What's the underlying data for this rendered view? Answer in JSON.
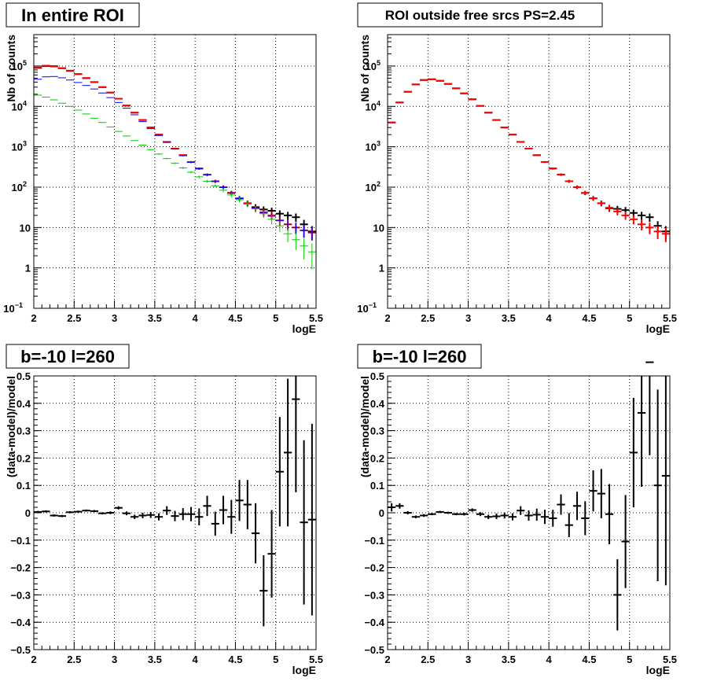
{
  "chart_data": [
    {
      "type": "scatter",
      "title": "In entire ROI",
      "xlabel": "logE",
      "ylabel": "Nb of counts",
      "xlim": [
        2,
        5.5
      ],
      "ylim": [
        0.1,
        600000
      ],
      "yscale": "log",
      "grid": true,
      "x_ticks": [
        "2",
        "2.5",
        "3",
        "3.5",
        "4",
        "4.5",
        "5",
        "5.5"
      ],
      "y_ticks": [
        {
          "value": 100000,
          "label": "10",
          "exp": "5"
        },
        {
          "value": 10000,
          "label": "10",
          "exp": "4"
        },
        {
          "value": 1000,
          "label": "10",
          "exp": "3"
        },
        {
          "value": 100,
          "label": "10",
          "exp": "2"
        },
        {
          "value": 10,
          "label": "10",
          "exp": ""
        },
        {
          "value": 1,
          "label": "1",
          "exp": ""
        },
        {
          "value": 0.1,
          "label": "10",
          "exp": "−1"
        }
      ],
      "x": [
        2.05,
        2.15,
        2.25,
        2.35,
        2.45,
        2.55,
        2.65,
        2.75,
        2.85,
        2.95,
        3.05,
        3.15,
        3.25,
        3.35,
        3.45,
        3.55,
        3.65,
        3.75,
        3.85,
        3.95,
        4.05,
        4.15,
        4.25,
        4.35,
        4.45,
        4.55,
        4.65,
        4.75,
        4.85,
        4.95,
        5.05,
        5.15,
        5.25,
        5.35,
        5.45
      ],
      "series": [
        {
          "color": "#000000",
          "values": [
            90000,
            100000,
            98000,
            88000,
            76000,
            63000,
            50000,
            40000,
            30000,
            22000,
            15500,
            10500,
            7000,
            4600,
            3000,
            2000,
            1320,
            900,
            620,
            420,
            290,
            205,
            140,
            100,
            72,
            53,
            40,
            32,
            28,
            26,
            22,
            20,
            18,
            12,
            8
          ]
        },
        {
          "color": "#ff0000",
          "values": [
            92000,
            102000,
            100000,
            89000,
            77000,
            63500,
            50500,
            40000,
            30000,
            22000,
            15500,
            10500,
            7000,
            4600,
            3000,
            2000,
            1320,
            900,
            620,
            420,
            290,
            205,
            140,
            100,
            72,
            53,
            40,
            30,
            24,
            20,
            15,
            12,
            10,
            8.5,
            7.5
          ]
        },
        {
          "color": "#0000ff",
          "values": [
            47000,
            54000,
            55000,
            51000,
            45000,
            39000,
            33000,
            27000,
            21500,
            16500,
            12500,
            9000,
            6200,
            4200,
            2800,
            1900,
            1280,
            880,
            600,
            410,
            285,
            200,
            138,
            98,
            71,
            52,
            38,
            30,
            23,
            19,
            15,
            12,
            10,
            8.5,
            7.5
          ]
        },
        {
          "color": "#00cc00",
          "values": [
            19000,
            17000,
            14500,
            12000,
            10000,
            8100,
            6500,
            5100,
            4000,
            3100,
            2400,
            1850,
            1420,
            1100,
            850,
            660,
            510,
            390,
            300,
            235,
            180,
            140,
            108,
            84,
            64,
            49,
            38,
            29,
            22,
            16,
            11,
            7,
            5,
            3.5,
            2.5
          ]
        }
      ]
    },
    {
      "type": "scatter",
      "title": "ROI outside free srcs PS=2.45",
      "xlabel": "logE",
      "ylabel": "Nb of counts",
      "xlim": [
        2,
        5.5
      ],
      "ylim": [
        0.1,
        600000
      ],
      "yscale": "log",
      "grid": true,
      "x_ticks": [
        "2",
        "2.5",
        "3",
        "3.5",
        "4",
        "4.5",
        "5",
        "5.5"
      ],
      "y_ticks": [
        {
          "value": 100000,
          "label": "10",
          "exp": "5"
        },
        {
          "value": 10000,
          "label": "10",
          "exp": "4"
        },
        {
          "value": 1000,
          "label": "10",
          "exp": "3"
        },
        {
          "value": 100,
          "label": "10",
          "exp": "2"
        },
        {
          "value": 10,
          "label": "10",
          "exp": ""
        },
        {
          "value": 1,
          "label": "1",
          "exp": ""
        },
        {
          "value": 0.1,
          "label": "10",
          "exp": "−1"
        }
      ],
      "x": [
        2.05,
        2.15,
        2.25,
        2.35,
        2.45,
        2.55,
        2.65,
        2.75,
        2.85,
        2.95,
        3.05,
        3.15,
        3.25,
        3.35,
        3.45,
        3.55,
        3.65,
        3.75,
        3.85,
        3.95,
        4.05,
        4.15,
        4.25,
        4.35,
        4.45,
        4.55,
        4.65,
        4.75,
        4.85,
        4.95,
        5.05,
        5.15,
        5.25,
        5.35,
        5.45
      ],
      "series": [
        {
          "color": "#000000",
          "values": [
            4000,
            12500,
            23000,
            35000,
            45000,
            47000,
            43000,
            36000,
            28000,
            21000,
            15000,
            10300,
            7000,
            4600,
            3000,
            2000,
            1320,
            900,
            620,
            420,
            290,
            205,
            140,
            100,
            72,
            53,
            40,
            30,
            29,
            27,
            23,
            20,
            18,
            11,
            8
          ]
        },
        {
          "color": "#ff0000",
          "values": [
            4000,
            12500,
            23000,
            35000,
            45000,
            47000,
            43000,
            36000,
            28000,
            21000,
            15000,
            10300,
            7000,
            4600,
            3000,
            2000,
            1320,
            900,
            620,
            420,
            290,
            205,
            140,
            100,
            72,
            53,
            40,
            31,
            25,
            20,
            16,
            12,
            10,
            8,
            7
          ]
        }
      ]
    },
    {
      "type": "scatter",
      "title": "b=-10 l=260",
      "xlabel": "logE",
      "ylabel": "(data-model)/model",
      "xlim": [
        2,
        5.5
      ],
      "ylim": [
        -0.5,
        0.5
      ],
      "grid": true,
      "x_ticks": [
        "2",
        "2.5",
        "3",
        "3.5",
        "4",
        "4.5",
        "5",
        "5.5"
      ],
      "y_ticks": [
        {
          "value": 0.5,
          "label": "0.5"
        },
        {
          "value": 0.4,
          "label": "0.4"
        },
        {
          "value": 0.3,
          "label": "0.3"
        },
        {
          "value": 0.2,
          "label": "0.2"
        },
        {
          "value": 0.1,
          "label": "0.1"
        },
        {
          "value": 0,
          "label": "0"
        },
        {
          "value": -0.1,
          "label": "−0.1"
        },
        {
          "value": -0.2,
          "label": "−0.2"
        },
        {
          "value": -0.3,
          "label": "−0.3"
        },
        {
          "value": -0.4,
          "label": "−0.4"
        },
        {
          "value": -0.5,
          "label": "−0.5"
        }
      ],
      "x": [
        2.05,
        2.15,
        2.25,
        2.35,
        2.45,
        2.55,
        2.65,
        2.75,
        2.85,
        2.95,
        3.05,
        3.15,
        3.25,
        3.35,
        3.45,
        3.55,
        3.65,
        3.75,
        3.85,
        3.95,
        4.05,
        4.15,
        4.25,
        4.35,
        4.45,
        4.55,
        4.65,
        4.75,
        4.85,
        4.95,
        5.05,
        5.15,
        5.25,
        5.35,
        5.45
      ],
      "series": [
        {
          "color": "#000000",
          "values": [
            0.003,
            0.005,
            -0.01,
            -0.012,
            0.002,
            0.004,
            0.008,
            0.006,
            -0.002,
            0.0,
            0.018,
            -0.002,
            -0.015,
            -0.01,
            -0.008,
            -0.015,
            0.008,
            -0.012,
            -0.005,
            -0.005,
            -0.015,
            0.025,
            -0.04,
            0.01,
            -0.015,
            0.045,
            0.03,
            -0.075,
            -0.285,
            -0.15,
            0.15,
            0.22,
            0.415,
            -0.035,
            -0.025
          ],
          "errors": [
            0.004,
            0.004,
            0.004,
            0.004,
            0.004,
            0.004,
            0.004,
            0.004,
            0.004,
            0.005,
            0.006,
            0.007,
            0.008,
            0.01,
            0.011,
            0.013,
            0.016,
            0.019,
            0.022,
            0.026,
            0.031,
            0.037,
            0.044,
            0.052,
            0.062,
            0.075,
            0.09,
            0.11,
            0.13,
            0.16,
            0.2,
            0.27,
            0.34,
            0.3,
            0.35
          ]
        }
      ]
    },
    {
      "type": "scatter",
      "title": "b=-10 l=260",
      "xlabel": "logE",
      "ylabel": "(data-model)/model",
      "xlim": [
        2,
        5.5
      ],
      "ylim": [
        -0.5,
        0.5
      ],
      "grid": true,
      "x_ticks": [
        "2",
        "2.5",
        "3",
        "3.5",
        "4",
        "4.5",
        "5",
        "5.5"
      ],
      "y_ticks": [
        {
          "value": 0.5,
          "label": "0.5"
        },
        {
          "value": 0.4,
          "label": "0.4"
        },
        {
          "value": 0.3,
          "label": "0.3"
        },
        {
          "value": 0.2,
          "label": "0.2"
        },
        {
          "value": 0.1,
          "label": "0.1"
        },
        {
          "value": 0,
          "label": "0"
        },
        {
          "value": -0.1,
          "label": "−0.1"
        },
        {
          "value": -0.2,
          "label": "−0.2"
        },
        {
          "value": -0.3,
          "label": "−0.3"
        },
        {
          "value": -0.4,
          "label": "−0.4"
        },
        {
          "value": -0.5,
          "label": "−0.5"
        }
      ],
      "x": [
        2.05,
        2.15,
        2.25,
        2.35,
        2.45,
        2.55,
        2.65,
        2.75,
        2.85,
        2.95,
        3.05,
        3.15,
        3.25,
        3.35,
        3.45,
        3.55,
        3.65,
        3.75,
        3.85,
        3.95,
        4.05,
        4.15,
        4.25,
        4.35,
        4.45,
        4.55,
        4.65,
        4.75,
        4.85,
        4.95,
        5.05,
        5.15,
        5.25,
        5.35,
        5.45
      ],
      "series": [
        {
          "color": "#000000",
          "values": [
            0.02,
            0.025,
            0.0,
            -0.015,
            -0.01,
            -0.005,
            0.003,
            0.0,
            -0.005,
            -0.005,
            0.01,
            -0.005,
            -0.015,
            -0.013,
            -0.01,
            -0.015,
            0.008,
            -0.01,
            -0.007,
            -0.015,
            -0.02,
            0.03,
            -0.045,
            0.025,
            -0.02,
            0.08,
            0.07,
            -0.005,
            -0.3,
            -0.105,
            0.22,
            0.365,
            0.55,
            0.1,
            0.135
          ],
          "errors": [
            0.015,
            0.01,
            0.006,
            0.005,
            0.005,
            0.004,
            0.004,
            0.004,
            0.004,
            0.005,
            0.006,
            0.007,
            0.008,
            0.01,
            0.011,
            0.013,
            0.016,
            0.019,
            0.022,
            0.026,
            0.031,
            0.037,
            0.044,
            0.052,
            0.062,
            0.075,
            0.09,
            0.11,
            0.13,
            0.17,
            0.2,
            0.27,
            0.34,
            0.35,
            0.4
          ]
        }
      ]
    }
  ]
}
